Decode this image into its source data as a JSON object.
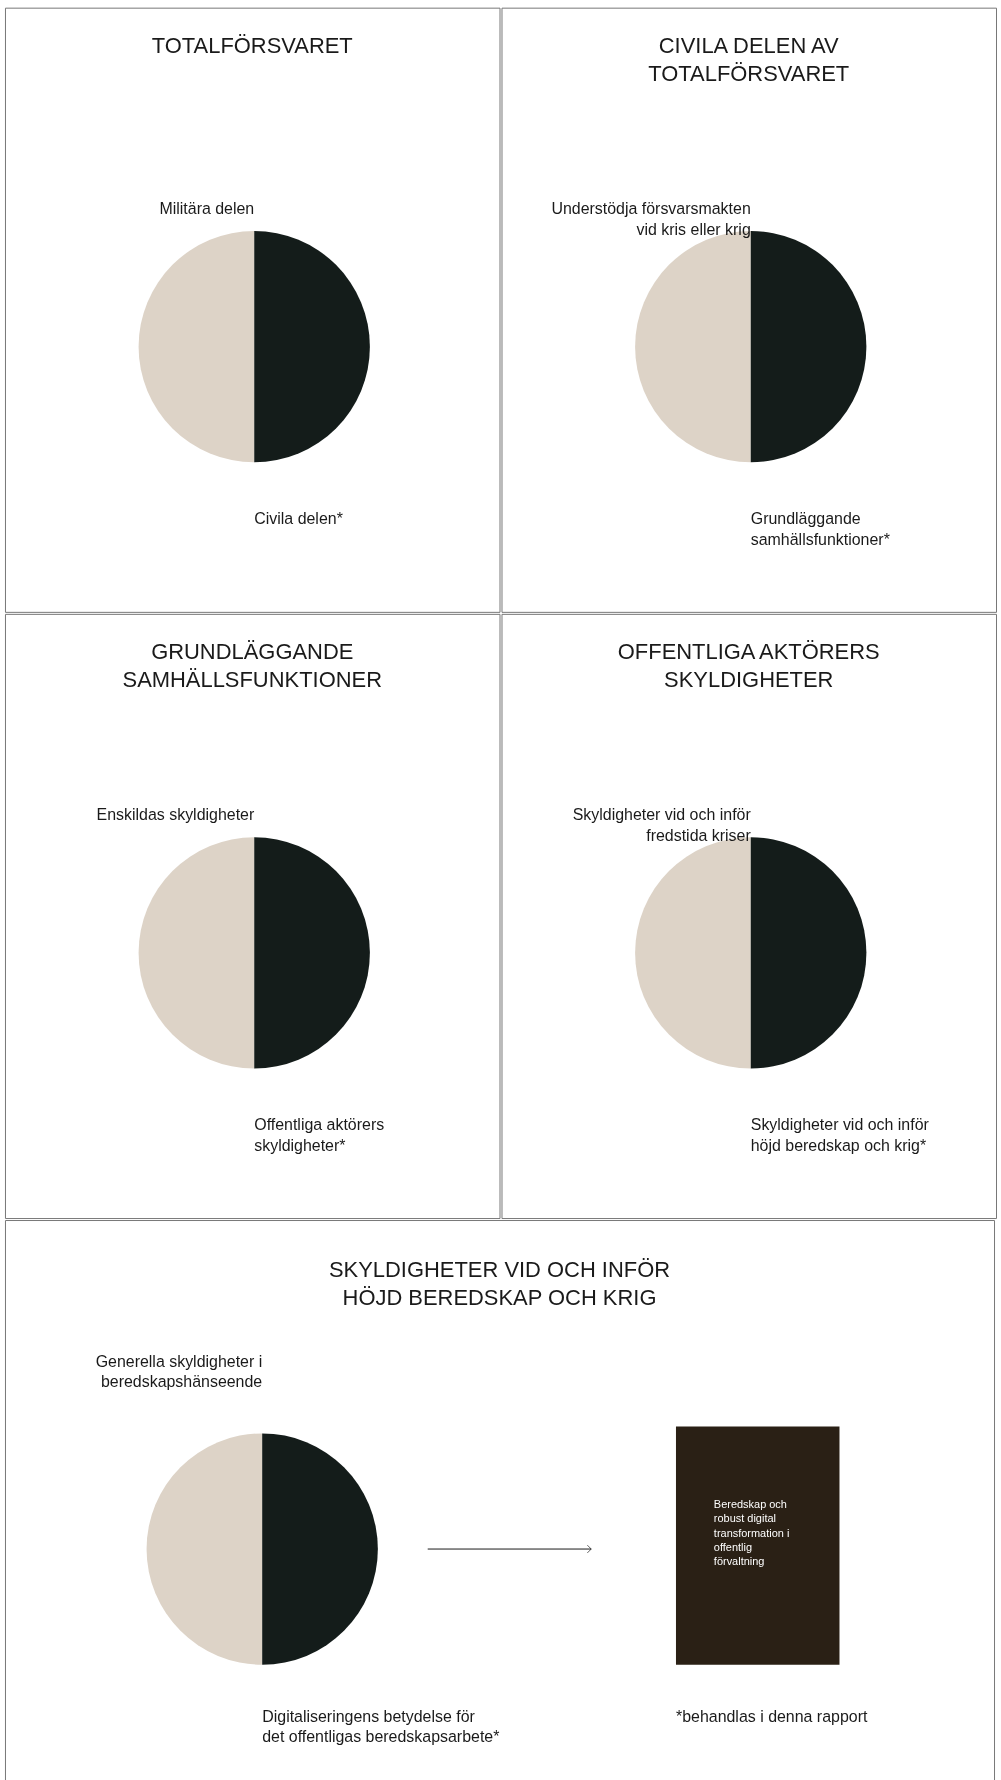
{
  "chart_data": [
    {
      "type": "pie",
      "title": "TOTALFÖRSVARET",
      "categories": [
        "Militära delen",
        "Civila delen*"
      ],
      "values": [
        50,
        50
      ],
      "colors": [
        "#ddd3c7",
        "#141c1a"
      ]
    },
    {
      "type": "pie",
      "title": "CIVILA DELEN AV TOTALFÖRSVARET",
      "categories": [
        "Understödja försvarsmakten vid kris eller krig",
        "Grundläggande samhällsfunktioner*"
      ],
      "values": [
        50,
        50
      ],
      "colors": [
        "#ddd3c7",
        "#141c1a"
      ]
    },
    {
      "type": "pie",
      "title": "GRUNDLÄGGANDE SAMHÄLLSFUNKTIONER",
      "categories": [
        "Enskildas skyldigheter",
        "Offentliga aktörers skyldigheter*"
      ],
      "values": [
        50,
        50
      ],
      "colors": [
        "#ddd3c7",
        "#141c1a"
      ]
    },
    {
      "type": "pie",
      "title": "OFFENTLIGA AKTÖRERS SKYLDIGHETER",
      "categories": [
        "Skyldigheter vid och inför fredstida kriser",
        "Skyldigheter vid och inför höjd beredskap och krig*"
      ],
      "values": [
        50,
        50
      ],
      "colors": [
        "#ddd3c7",
        "#141c1a"
      ]
    },
    {
      "type": "pie",
      "title": "SKYLDIGHETER VID OCH INFÖR HÖJD BEREDSKAP OCH KRIG",
      "categories": [
        "Generella skyldigheter i beredskapshänseende",
        "Digitaliseringens betydelse för det offentligas beredskapsarbete*"
      ],
      "values": [
        50,
        50
      ],
      "colors": [
        "#ddd3c7",
        "#141c1a"
      ],
      "annotations": [
        "Beredskap och robust digital transformation i offentlig förvaltning",
        "*behandlas i denna rapport"
      ]
    }
  ]
}
